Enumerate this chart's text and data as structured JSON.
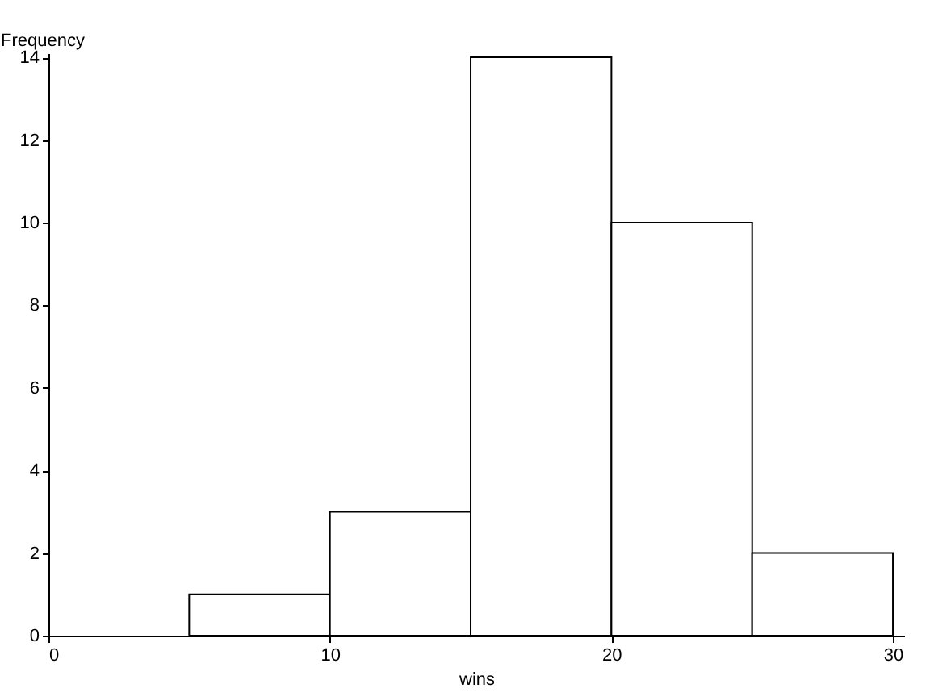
{
  "chart_data": {
    "type": "histogram",
    "xlabel": "wins",
    "ylabel": "Frequency",
    "bins": [
      5,
      10,
      15,
      20,
      25,
      30
    ],
    "values": [
      1,
      3,
      14,
      10,
      2
    ],
    "color": "#ffffff",
    "xlim": [
      0,
      30.4
    ],
    "xticks": [
      0,
      10,
      20,
      30
    ],
    "ylim": [
      0,
      14.1
    ],
    "yticks": [
      0,
      2,
      4,
      6,
      8,
      10,
      12,
      14
    ],
    "grid": false
  }
}
